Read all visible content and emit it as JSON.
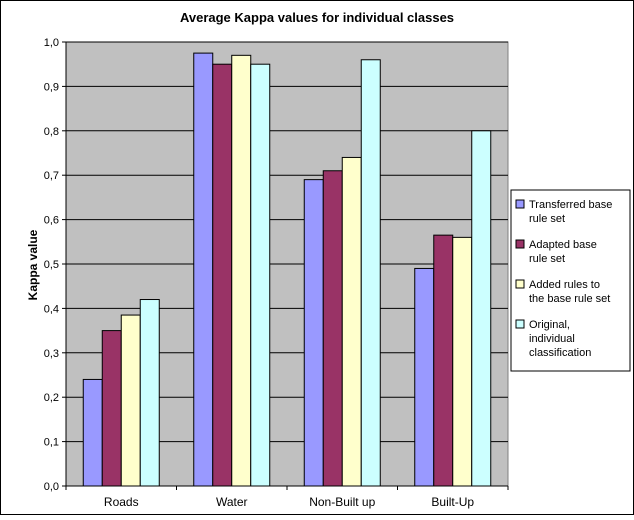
{
  "chart_data": {
    "type": "bar",
    "title": "Average Kappa values for individual classes",
    "xlabel": "",
    "ylabel": "Kappa value",
    "ylim": [
      0,
      1.0
    ],
    "yticks": [
      "0,0",
      "0,1",
      "0,2",
      "0,3",
      "0,4",
      "0,5",
      "0,6",
      "0,7",
      "0,8",
      "0,9",
      "1,0"
    ],
    "categories": [
      "Roads",
      "Water",
      "Non-Built up",
      "Built-Up"
    ],
    "series": [
      {
        "name": "Transferred base rule set",
        "legend_lines": [
          "Transferred base",
          "rule set"
        ],
        "color": "#9999ff",
        "values": [
          0.24,
          0.975,
          0.69,
          0.49
        ]
      },
      {
        "name": "Adapted base rule set",
        "legend_lines": [
          "Adapted base",
          "rule set"
        ],
        "color": "#993366",
        "values": [
          0.35,
          0.95,
          0.71,
          0.565
        ]
      },
      {
        "name": "Added rules to the base rule set",
        "legend_lines": [
          "Added rules to",
          "the base rule set"
        ],
        "color": "#ffffcc",
        "values": [
          0.385,
          0.97,
          0.74,
          0.56
        ]
      },
      {
        "name": "Original, individual classification",
        "legend_lines": [
          "Original,",
          "individual",
          "classification"
        ],
        "color": "#ccffff",
        "values": [
          0.42,
          0.95,
          0.96,
          0.8
        ]
      }
    ],
    "grid": true,
    "plot_background": "#c0c0c0",
    "legend_position": "right"
  }
}
